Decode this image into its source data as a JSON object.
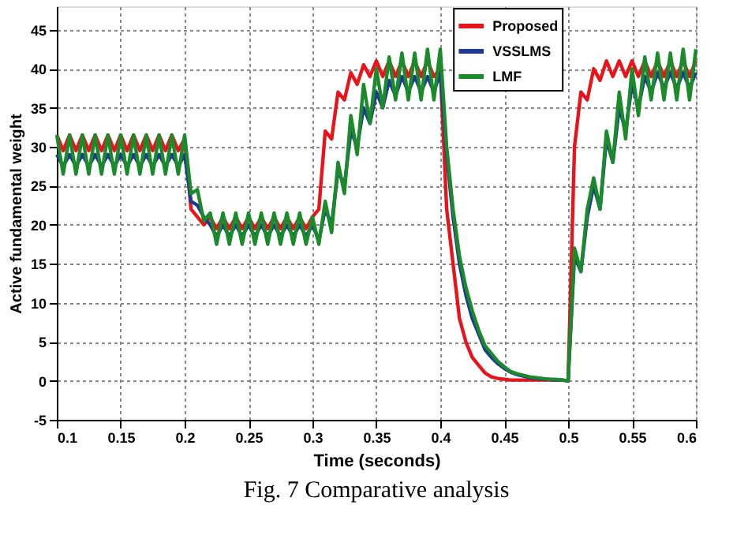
{
  "chart_data": {
    "type": "line",
    "xlabel": "Time (seconds)",
    "ylabel": "Active fundamental weight",
    "annotations": [
      "Fig. 7 Comparative analysis"
    ],
    "x": [
      0.1,
      0.105,
      0.11,
      0.115,
      0.12,
      0.125,
      0.13,
      0.135,
      0.14,
      0.145,
      0.15,
      0.155,
      0.16,
      0.165,
      0.17,
      0.175,
      0.18,
      0.185,
      0.19,
      0.195,
      0.2,
      0.205,
      0.21,
      0.215,
      0.22,
      0.225,
      0.23,
      0.235,
      0.24,
      0.245,
      0.25,
      0.255,
      0.26,
      0.265,
      0.27,
      0.275,
      0.28,
      0.285,
      0.29,
      0.295,
      0.3,
      0.305,
      0.31,
      0.315,
      0.32,
      0.325,
      0.33,
      0.335,
      0.34,
      0.345,
      0.35,
      0.355,
      0.36,
      0.365,
      0.37,
      0.375,
      0.38,
      0.385,
      0.39,
      0.395,
      0.4,
      0.405,
      0.41,
      0.415,
      0.42,
      0.425,
      0.43,
      0.435,
      0.44,
      0.445,
      0.45,
      0.455,
      0.46,
      0.465,
      0.47,
      0.475,
      0.48,
      0.485,
      0.49,
      0.495,
      0.5,
      0.505,
      0.51,
      0.515,
      0.52,
      0.525,
      0.53,
      0.535,
      0.54,
      0.545,
      0.55,
      0.555,
      0.56,
      0.565,
      0.57,
      0.575,
      0.58,
      0.585,
      0.59,
      0.595,
      0.6
    ],
    "series": [
      {
        "name": "Proposed",
        "color": "#e8141c",
        "values": [
          31.5,
          29.5,
          31.5,
          29.5,
          31.5,
          29.5,
          31.5,
          29.5,
          31.5,
          29.5,
          31.5,
          29.5,
          31.5,
          29.5,
          31.5,
          29.5,
          31.5,
          29.5,
          31.5,
          29.5,
          31,
          22,
          21,
          20,
          21,
          19.5,
          21,
          19.5,
          21,
          19.5,
          21,
          19.5,
          21,
          19.5,
          21,
          19.5,
          21,
          19.5,
          21,
          19.5,
          21,
          22,
          32,
          31,
          37,
          36,
          39.5,
          38,
          40.5,
          39,
          41,
          39,
          41,
          39,
          41,
          39,
          41,
          39,
          41,
          39,
          40,
          22,
          15,
          8,
          5,
          3,
          2,
          1,
          0.5,
          0.3,
          0.2,
          0.1,
          0.1,
          0.1,
          0.1,
          0.1,
          0.1,
          0.1,
          0.1,
          0.1,
          0,
          30,
          37,
          36,
          40,
          38.5,
          41,
          39,
          41,
          39,
          41,
          39,
          41,
          39,
          41,
          39,
          41,
          39,
          41,
          39,
          41
        ]
      },
      {
        "name": "VSSLMS",
        "color": "#1f3a93",
        "values": [
          29,
          27.5,
          29,
          27.5,
          29,
          27.5,
          29,
          27.5,
          29,
          27.5,
          29,
          27.5,
          29,
          27.5,
          29,
          27.5,
          29,
          27.5,
          29,
          27.5,
          29,
          23,
          22.5,
          21,
          20,
          18.5,
          20,
          18.5,
          20,
          18.5,
          20,
          18.5,
          20,
          18.5,
          20,
          18.5,
          20,
          18.5,
          20,
          18.5,
          20,
          18,
          22,
          20,
          27,
          25,
          32,
          30,
          35,
          33,
          37,
          35,
          38.5,
          36.5,
          39,
          37,
          39,
          37,
          39,
          37,
          39.5,
          29,
          21,
          15,
          11,
          8,
          6,
          4,
          3,
          2.2,
          1.6,
          1.1,
          0.8,
          0.6,
          0.4,
          0.3,
          0.2,
          0.2,
          0.1,
          0.1,
          0,
          16,
          14,
          21,
          25,
          22,
          31,
          28,
          35,
          32,
          38,
          35,
          39,
          37,
          39.5,
          37.5,
          39.5,
          37.5,
          39.5,
          37.5,
          39.5
        ]
      },
      {
        "name": "LMF",
        "color": "#1a8a2a",
        "values": [
          31.5,
          26.5,
          31.5,
          26.5,
          31.5,
          26.5,
          31.5,
          26.5,
          31.5,
          26.5,
          31.5,
          26.5,
          31.5,
          26.5,
          31.5,
          26.5,
          31.5,
          26.5,
          31.5,
          26.5,
          31.5,
          24,
          24.5,
          20.5,
          21.5,
          17.5,
          21.5,
          17.5,
          21.5,
          17.5,
          21.5,
          17.5,
          21.5,
          17.5,
          21.5,
          17.5,
          21.5,
          17.5,
          21.5,
          17.5,
          21,
          17.5,
          23,
          19,
          28,
          24,
          34,
          29,
          38,
          33,
          40,
          35,
          41.5,
          36,
          42,
          36,
          42,
          36,
          42.5,
          36,
          42.5,
          30,
          22,
          16,
          12,
          9,
          6.5,
          4.5,
          3.5,
          2.5,
          1.8,
          1.2,
          0.9,
          0.7,
          0.5,
          0.4,
          0.3,
          0.2,
          0.2,
          0.1,
          0,
          17,
          14,
          22,
          26,
          22,
          32,
          28,
          37,
          31,
          40,
          34,
          41.5,
          36,
          42,
          36,
          42,
          36,
          42.5,
          36,
          42.5
        ]
      }
    ],
    "xlim": [
      0.1,
      0.6
    ],
    "xticks": [
      0.1,
      0.15,
      0.2,
      0.25,
      0.3,
      0.35,
      0.4,
      0.45,
      0.5,
      0.55,
      0.6
    ],
    "ylim": [
      -5,
      48
    ],
    "yticks": [
      -5,
      0,
      5,
      10,
      15,
      20,
      25,
      30,
      35,
      40,
      45
    ],
    "grid": true,
    "legend": "top right",
    "marker": "none",
    "line_style": "solid"
  }
}
